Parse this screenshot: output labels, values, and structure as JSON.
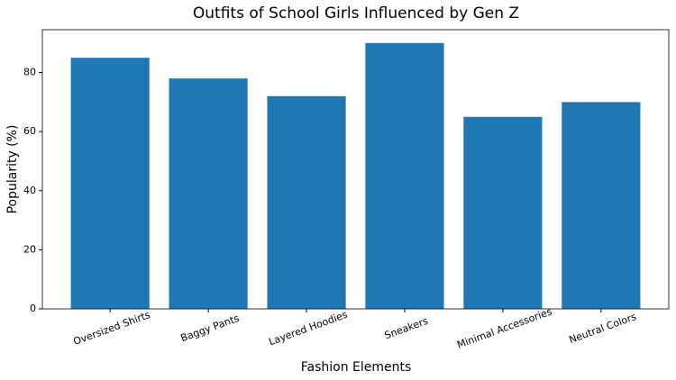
{
  "chart_data": {
    "type": "bar",
    "title": "Outfits of School Girls Influenced by Gen Z",
    "x_label": "Fashion Elements",
    "y_label": "Popularity (%)",
    "categories": [
      "Oversized Shirts",
      "Baggy Pants",
      "Layered Hoodies",
      "Sneakers",
      "Minimal Accessories",
      "Neutral Colors"
    ],
    "values": [
      85,
      78,
      72,
      90,
      65,
      70
    ],
    "color": "#1f77b4",
    "ylim": [
      0,
      94.5
    ],
    "yticks": [
      0,
      20,
      40,
      60,
      80
    ]
  }
}
